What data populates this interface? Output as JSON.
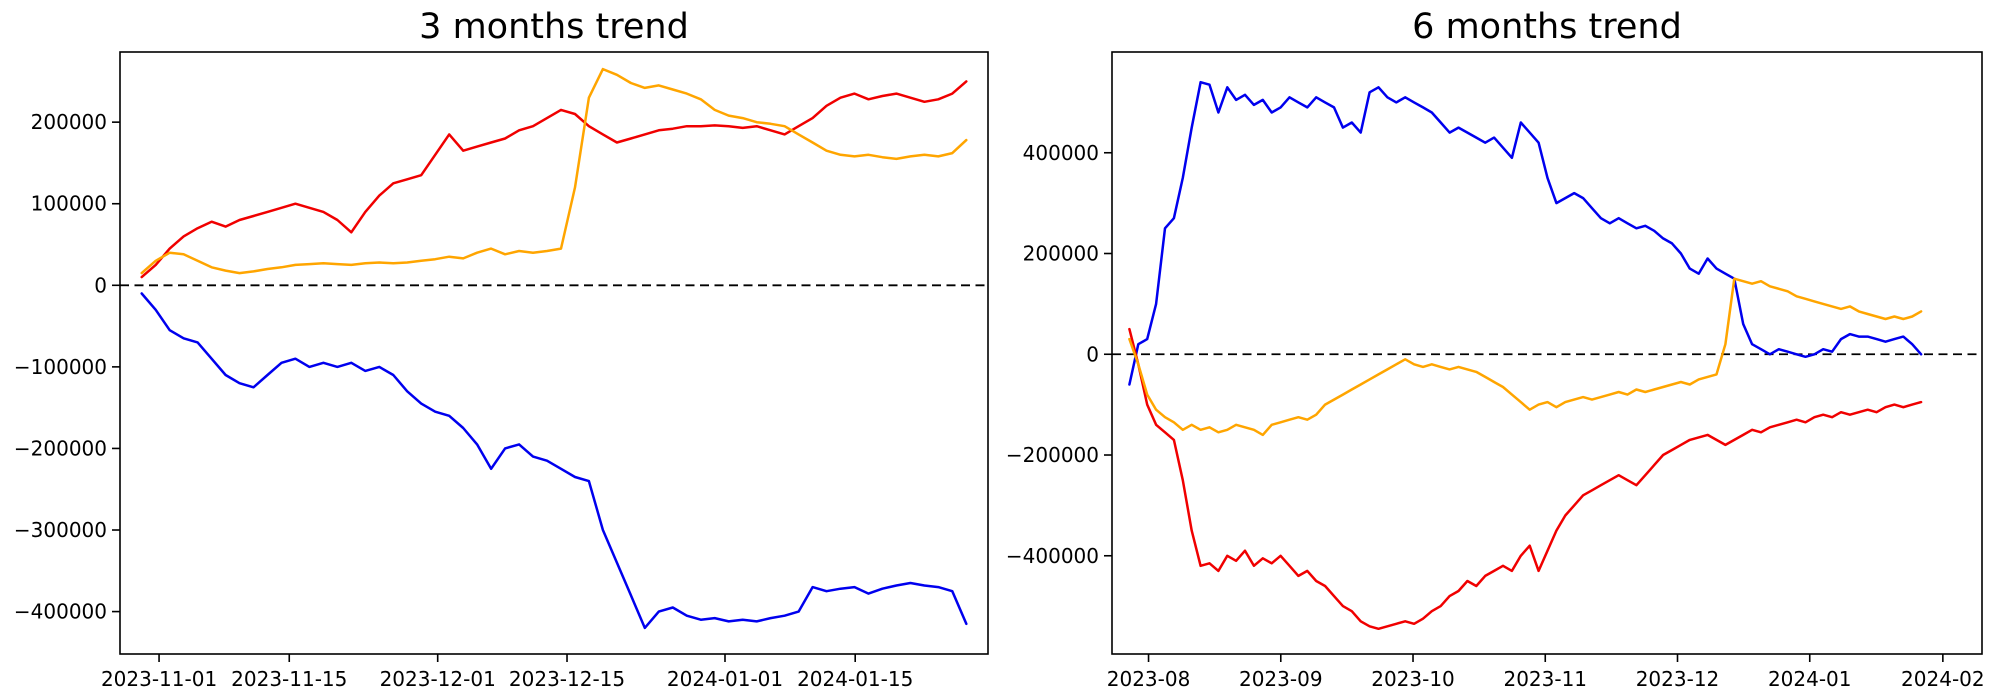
{
  "figure": {
    "background": "#ffffff"
  },
  "chart_data": [
    {
      "type": "line",
      "title": "3 months trend",
      "grid": false,
      "legend": "none",
      "zero_line": true,
      "ylim": [
        -452000,
        286000
      ],
      "y_ticks": [
        {
          "v": 200000,
          "label": "200000"
        },
        {
          "v": 100000,
          "label": "100000"
        },
        {
          "v": 0,
          "label": "0"
        },
        {
          "v": -100000,
          "label": "−100000"
        },
        {
          "v": -200000,
          "label": "−200000"
        },
        {
          "v": -300000,
          "label": "−300000"
        },
        {
          "v": -400000,
          "label": "−400000"
        }
      ],
      "x_ticks": [
        {
          "f": 0.045,
          "label": "2023-11-01"
        },
        {
          "f": 0.195,
          "label": "2023-11-15"
        },
        {
          "f": 0.366,
          "label": "2023-12-01"
        },
        {
          "f": 0.515,
          "label": "2023-12-15"
        },
        {
          "f": 0.697,
          "label": "2024-01-01"
        },
        {
          "f": 0.847,
          "label": "2024-01-15"
        }
      ],
      "series": [
        {
          "name": "red",
          "color": "#f00000",
          "x_start": 0.025,
          "x_end": 0.975,
          "values": [
            10000,
            25000,
            45000,
            60000,
            70000,
            78000,
            72000,
            80000,
            85000,
            90000,
            95000,
            100000,
            95000,
            90000,
            80000,
            65000,
            90000,
            110000,
            125000,
            130000,
            135000,
            160000,
            185000,
            165000,
            170000,
            175000,
            180000,
            190000,
            195000,
            205000,
            215000,
            210000,
            195000,
            185000,
            175000,
            180000,
            185000,
            190000,
            192000,
            195000,
            195000,
            196000,
            195000,
            193000,
            195000,
            190000,
            185000,
            195000,
            205000,
            220000,
            230000,
            235000,
            228000,
            232000,
            235000,
            230000,
            225000,
            228000,
            235000,
            250000
          ]
        },
        {
          "name": "orange",
          "color": "#ffa500",
          "x_start": 0.025,
          "x_end": 0.975,
          "values": [
            15000,
            30000,
            40000,
            38000,
            30000,
            22000,
            18000,
            15000,
            17000,
            20000,
            22000,
            25000,
            26000,
            27000,
            26000,
            25000,
            27000,
            28000,
            27000,
            28000,
            30000,
            32000,
            35000,
            33000,
            40000,
            45000,
            38000,
            42000,
            40000,
            42000,
            45000,
            120000,
            230000,
            265000,
            258000,
            248000,
            242000,
            245000,
            240000,
            235000,
            228000,
            215000,
            208000,
            205000,
            200000,
            198000,
            195000,
            185000,
            175000,
            165000,
            160000,
            158000,
            160000,
            157000,
            155000,
            158000,
            160000,
            158000,
            162000,
            178000
          ]
        },
        {
          "name": "blue",
          "color": "#0000ee",
          "x_start": 0.025,
          "x_end": 0.975,
          "values": [
            -10000,
            -30000,
            -55000,
            -65000,
            -70000,
            -90000,
            -110000,
            -120000,
            -125000,
            -110000,
            -95000,
            -90000,
            -100000,
            -95000,
            -100000,
            -95000,
            -105000,
            -100000,
            -110000,
            -130000,
            -145000,
            -155000,
            -160000,
            -175000,
            -195000,
            -225000,
            -200000,
            -195000,
            -210000,
            -215000,
            -225000,
            -235000,
            -240000,
            -300000,
            -340000,
            -380000,
            -420000,
            -400000,
            -395000,
            -405000,
            -410000,
            -408000,
            -412000,
            -410000,
            -412000,
            -408000,
            -405000,
            -400000,
            -370000,
            -375000,
            -372000,
            -370000,
            -378000,
            -372000,
            -368000,
            -365000,
            -368000,
            -370000,
            -375000,
            -415000
          ]
        }
      ]
    },
    {
      "type": "line",
      "title": "6 months trend",
      "grid": false,
      "legend": "none",
      "zero_line": true,
      "ylim": [
        -595000,
        600000
      ],
      "y_ticks": [
        {
          "v": 400000,
          "label": "400000"
        },
        {
          "v": 200000,
          "label": "200000"
        },
        {
          "v": 0,
          "label": "0"
        },
        {
          "v": -200000,
          "label": "−200000"
        },
        {
          "v": -400000,
          "label": "−400000"
        }
      ],
      "x_ticks": [
        {
          "f": 0.042,
          "label": "2023-08"
        },
        {
          "f": 0.194,
          "label": "2023-09"
        },
        {
          "f": 0.346,
          "label": "2023-10"
        },
        {
          "f": 0.498,
          "label": "2023-11"
        },
        {
          "f": 0.65,
          "label": "2023-12"
        },
        {
          "f": 0.802,
          "label": "2024-01"
        },
        {
          "f": 0.955,
          "label": "2024-02"
        }
      ],
      "series": [
        {
          "name": "blue",
          "color": "#0000ee",
          "x_start": 0.02,
          "x_end": 0.93,
          "values": [
            -60000,
            20000,
            30000,
            100000,
            250000,
            270000,
            350000,
            450000,
            540000,
            535000,
            480000,
            530000,
            505000,
            515000,
            495000,
            505000,
            480000,
            490000,
            510000,
            500000,
            490000,
            510000,
            500000,
            490000,
            450000,
            460000,
            440000,
            520000,
            530000,
            510000,
            500000,
            510000,
            500000,
            490000,
            480000,
            460000,
            440000,
            450000,
            440000,
            430000,
            420000,
            430000,
            410000,
            390000,
            460000,
            440000,
            420000,
            350000,
            300000,
            310000,
            320000,
            310000,
            290000,
            270000,
            260000,
            270000,
            260000,
            250000,
            255000,
            245000,
            230000,
            220000,
            200000,
            170000,
            160000,
            190000,
            170000,
            160000,
            150000,
            60000,
            20000,
            10000,
            0,
            10000,
            5000,
            0,
            -5000,
            0,
            10000,
            5000,
            30000,
            40000,
            35000,
            35000,
            30000,
            25000,
            30000,
            35000,
            20000,
            0
          ]
        },
        {
          "name": "red",
          "color": "#f00000",
          "x_start": 0.02,
          "x_end": 0.93,
          "values": [
            50000,
            -20000,
            -100000,
            -140000,
            -155000,
            -170000,
            -250000,
            -350000,
            -420000,
            -415000,
            -430000,
            -400000,
            -410000,
            -390000,
            -420000,
            -405000,
            -415000,
            -400000,
            -420000,
            -440000,
            -430000,
            -450000,
            -460000,
            -480000,
            -500000,
            -510000,
            -530000,
            -540000,
            -545000,
            -540000,
            -535000,
            -530000,
            -535000,
            -525000,
            -510000,
            -500000,
            -480000,
            -470000,
            -450000,
            -460000,
            -440000,
            -430000,
            -420000,
            -430000,
            -400000,
            -380000,
            -430000,
            -390000,
            -350000,
            -320000,
            -300000,
            -280000,
            -270000,
            -260000,
            -250000,
            -240000,
            -250000,
            -260000,
            -240000,
            -220000,
            -200000,
            -190000,
            -180000,
            -170000,
            -165000,
            -160000,
            -170000,
            -180000,
            -170000,
            -160000,
            -150000,
            -155000,
            -145000,
            -140000,
            -135000,
            -130000,
            -135000,
            -125000,
            -120000,
            -125000,
            -115000,
            -120000,
            -115000,
            -110000,
            -115000,
            -105000,
            -100000,
            -105000,
            -100000,
            -95000
          ]
        },
        {
          "name": "orange",
          "color": "#ffa500",
          "x_start": 0.02,
          "x_end": 0.93,
          "values": [
            30000,
            -20000,
            -80000,
            -110000,
            -125000,
            -135000,
            -150000,
            -140000,
            -150000,
            -145000,
            -155000,
            -150000,
            -140000,
            -145000,
            -150000,
            -160000,
            -140000,
            -135000,
            -130000,
            -125000,
            -130000,
            -120000,
            -100000,
            -90000,
            -80000,
            -70000,
            -60000,
            -50000,
            -40000,
            -30000,
            -20000,
            -10000,
            -20000,
            -25000,
            -20000,
            -25000,
            -30000,
            -25000,
            -30000,
            -35000,
            -45000,
            -55000,
            -65000,
            -80000,
            -95000,
            -110000,
            -100000,
            -95000,
            -105000,
            -95000,
            -90000,
            -85000,
            -90000,
            -85000,
            -80000,
            -75000,
            -80000,
            -70000,
            -75000,
            -70000,
            -65000,
            -60000,
            -55000,
            -60000,
            -50000,
            -45000,
            -40000,
            20000,
            150000,
            145000,
            140000,
            145000,
            135000,
            130000,
            125000,
            115000,
            110000,
            105000,
            100000,
            95000,
            90000,
            95000,
            85000,
            80000,
            75000,
            70000,
            75000,
            70000,
            75000,
            85000
          ]
        }
      ]
    }
  ]
}
